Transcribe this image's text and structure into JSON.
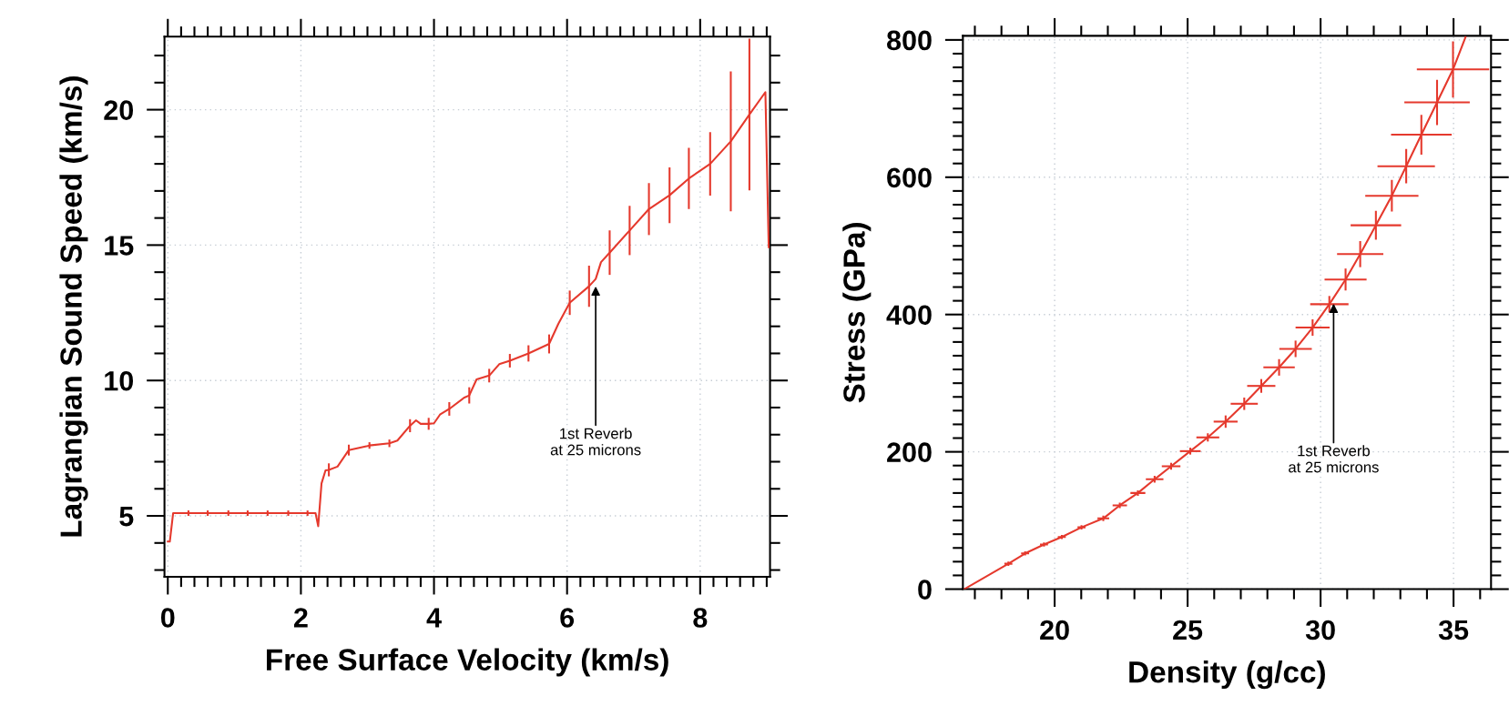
{
  "chart_data": [
    {
      "type": "line",
      "xlabel": "Free Surface Velocity (km/s)",
      "ylabel": "Lagrangian Sound Speed (km/s)",
      "xlim": [
        -0.05,
        9.05
      ],
      "ylim": [
        2.75,
        22.7
      ],
      "xticks": [
        0,
        2,
        4,
        6,
        8
      ],
      "yticks": [
        5,
        10,
        15,
        20
      ],
      "grid": true,
      "annotations": [
        {
          "text": "1st Reverb\nat 25 microns",
          "x": 6.43,
          "y": 13.48
        }
      ],
      "series": [
        {
          "color": "#e5392d",
          "x": [
            0,
            0.03,
            0.08,
            0.31,
            0.6,
            0.91,
            1.2,
            1.5,
            1.81,
            2.1,
            2.22,
            2.26,
            2.31,
            2.37,
            2.42,
            2.55,
            2.72,
            3.0,
            3.03,
            3.33,
            3.45,
            3.64,
            3.73,
            3.8,
            3.92,
            4.0,
            4.09,
            4.23,
            4.45,
            4.53,
            4.64,
            4.83,
            4.98,
            5.14,
            5.42,
            5.73,
            5.87,
            6.04,
            6.33,
            6.43,
            6.51,
            6.64,
            6.94,
            7.23,
            7.54,
            7.83,
            8.15,
            8.46,
            8.74,
            8.98,
            9.03
          ],
          "values": [
            4.05,
            4.05,
            5.1,
            5.1,
            5.1,
            5.1,
            5.1,
            5.1,
            5.1,
            5.1,
            5.1,
            4.62,
            6.2,
            6.68,
            6.7,
            6.82,
            7.43,
            7.58,
            7.6,
            7.68,
            7.78,
            8.33,
            8.53,
            8.4,
            8.4,
            8.42,
            8.74,
            8.95,
            9.36,
            9.45,
            10.04,
            10.18,
            10.6,
            10.73,
            11.0,
            11.35,
            12.1,
            12.87,
            13.48,
            13.75,
            14.37,
            14.72,
            15.54,
            16.33,
            16.84,
            17.46,
            18.0,
            18.83,
            19.82,
            20.65,
            14.92
          ],
          "errors": [
            null,
            null,
            null,
            0.1,
            0.1,
            0.1,
            0.1,
            0.1,
            0.1,
            0.1,
            null,
            null,
            null,
            null,
            0.24,
            null,
            0.2,
            null,
            0.12,
            0.14,
            null,
            0.24,
            null,
            null,
            0.22,
            null,
            null,
            0.25,
            null,
            0.3,
            null,
            0.25,
            null,
            0.25,
            0.3,
            0.35,
            null,
            0.45,
            0.76,
            null,
            null,
            0.82,
            0.91,
            0.96,
            1.03,
            1.13,
            1.17,
            2.58,
            2.8,
            null,
            null
          ]
        }
      ]
    },
    {
      "type": "line",
      "xlabel": "Density (g/cc)",
      "ylabel": "Stress (GPa)",
      "xlim": [
        16.55,
        36.41
      ],
      "ylim": [
        0,
        806
      ],
      "xticks": [
        20,
        25,
        30,
        35
      ],
      "yticks": [
        0,
        200,
        400,
        600,
        800
      ],
      "grid": true,
      "annotations": [
        {
          "text": "1st Reverb\nat 25 microns",
          "x": 30.49,
          "y": 416
        }
      ],
      "series": [
        {
          "color": "#e5392d",
          "x": [
            16.6,
            18.26,
            18.89,
            19.6,
            20.27,
            21.01,
            21.83,
            22.45,
            23.13,
            23.76,
            24.38,
            25.1,
            25.76,
            26.43,
            27.13,
            27.77,
            28.44,
            29.06,
            29.7,
            30.33,
            30.94,
            31.49,
            32.08,
            32.68,
            33.22,
            33.79,
            34.38,
            34.98,
            35.45
          ],
          "values": [
            0,
            37,
            52,
            65,
            76,
            90,
            103,
            122,
            140,
            160,
            179,
            201,
            221,
            244,
            270,
            296,
            323,
            350,
            381,
            415,
            451,
            488,
            530,
            573,
            616,
            662,
            709,
            757,
            804
          ],
          "errors": [
            null,
            3,
            3,
            3,
            3,
            3,
            4,
            4,
            4,
            5,
            5,
            5,
            6,
            9,
            9,
            10,
            12,
            12,
            12,
            12,
            16,
            19,
            21,
            23,
            25,
            29,
            33,
            41,
            null
          ],
          "xerrors": [
            null,
            0.15,
            0.15,
            0.15,
            0.15,
            0.15,
            0.22,
            0.27,
            0.28,
            0.33,
            0.35,
            0.39,
            0.43,
            0.45,
            0.51,
            0.53,
            0.59,
            0.61,
            0.64,
            0.72,
            0.79,
            0.87,
            0.95,
            1.0,
            1.08,
            1.14,
            1.23,
            1.36,
            null
          ]
        }
      ]
    }
  ]
}
